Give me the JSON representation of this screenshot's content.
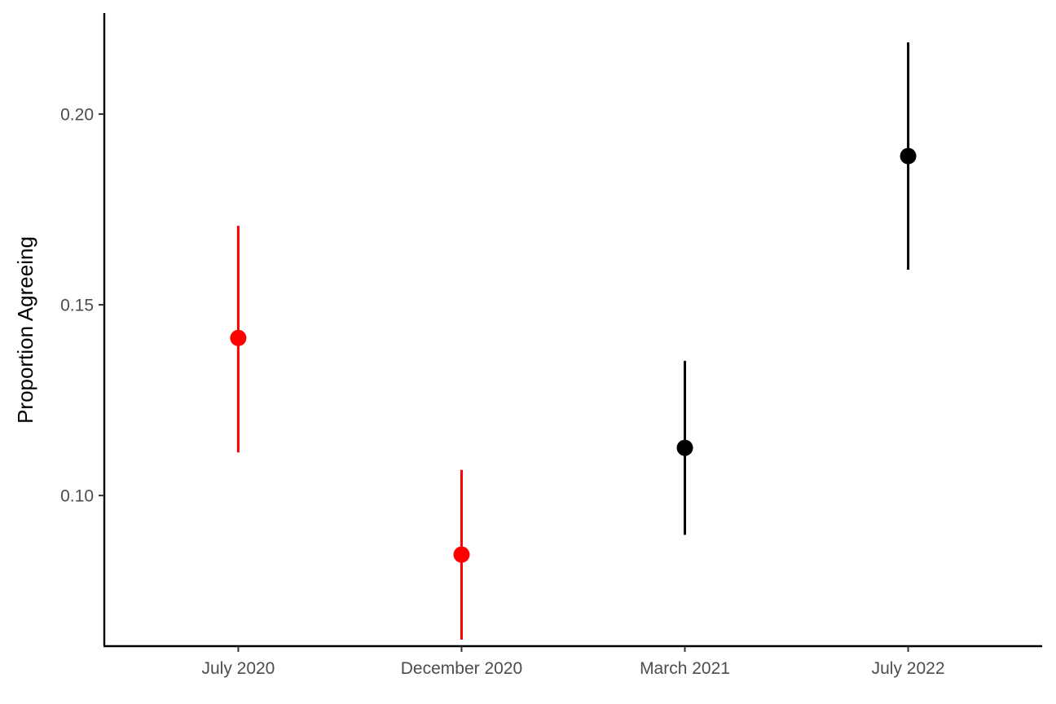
{
  "chart_data": {
    "type": "scatter",
    "title": "",
    "xlabel": "",
    "ylabel": "Proportion Agreeing",
    "categories": [
      "July 2020",
      "December 2020",
      "March 2021",
      "July 2022"
    ],
    "values": [
      0.1413,
      0.0845,
      0.1125,
      0.189
    ],
    "error_low": [
      0.1113,
      0.0622,
      0.0897,
      0.1592
    ],
    "error_high": [
      0.1707,
      0.1067,
      0.1353,
      0.2188
    ],
    "point_colors": [
      "#ff0000",
      "#ff0000",
      "#000000",
      "#000000"
    ],
    "ylim": [
      0.0605,
      0.2265
    ],
    "yticks": [
      0.1,
      0.15,
      0.2
    ],
    "ytick_labels": [
      "0.10",
      "0.15",
      "0.20"
    ],
    "grid": false,
    "legend": "none"
  }
}
